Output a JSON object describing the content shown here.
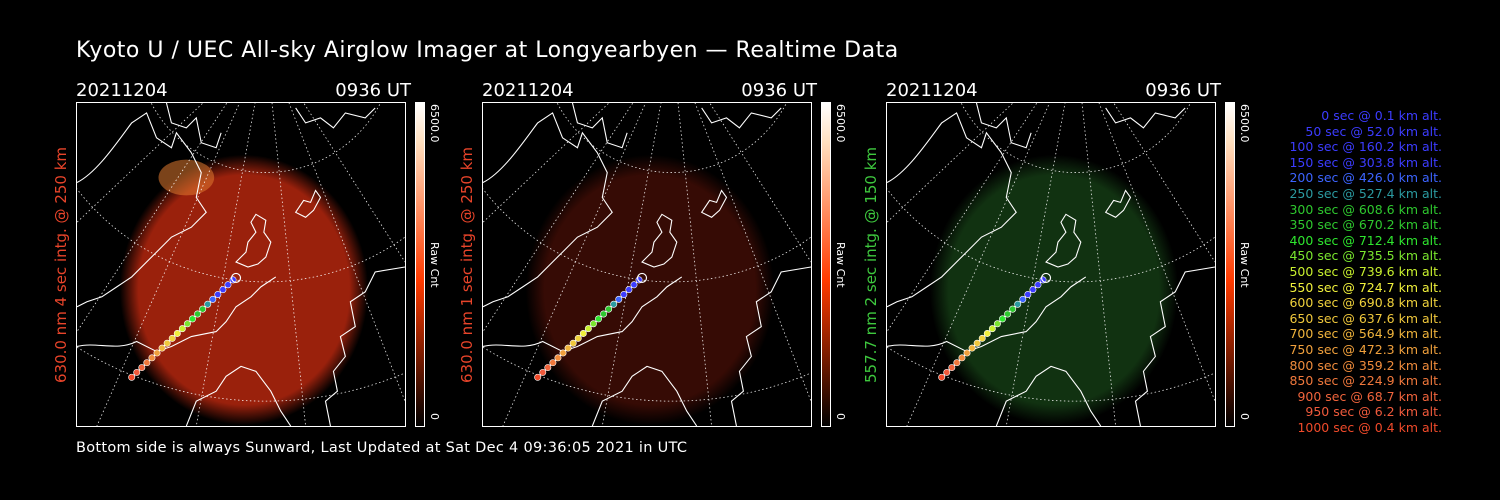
{
  "title": "Kyoto U / UEC All-sky Airglow Imager at Longyearbyen — Realtime Data",
  "footer": "Bottom side is always Sunward, Last Updated at Sat Dec  4 09:36:05 2021 in UTC",
  "panels": [
    {
      "date": "20211204",
      "time": "0936 UT",
      "label": "630.0 nm 4 sec intg. @ 250 km",
      "label_color": "#e8442a",
      "cbar_max": "6500.0",
      "cbar_unit": "Raw Cnt",
      "cbar_min": "0",
      "cbar_color": "#ff3a00",
      "glow_color": "#c52a10",
      "glow_strength": "0.78"
    },
    {
      "date": "20211204",
      "time": "0936 UT",
      "label": "630.0 nm 1 sec intg. @ 250 km",
      "label_color": "#e8442a",
      "cbar_max": "6500.0",
      "cbar_unit": "Raw Cnt",
      "cbar_min": "0",
      "cbar_color": "#ff3a00",
      "glow_color": "#5a1208",
      "glow_strength": "0.6"
    },
    {
      "date": "20211204",
      "time": "0936 UT",
      "label": "557.7 nm 2 sec intg. @ 150 km",
      "label_color": "#3ec83e",
      "cbar_max": "6500.0",
      "cbar_unit": "Raw Cnt",
      "cbar_min": "0",
      "cbar_color": "#ff3a00",
      "glow_color": "#1f5a1f",
      "glow_strength": "0.55"
    }
  ],
  "legend": [
    {
      "text": "0 sec @    0.1 km alt.",
      "color": "#3c3cff"
    },
    {
      "text": "50 sec @   52.0 km alt.",
      "color": "#3c3cff"
    },
    {
      "text": "100 sec @  160.2 km alt.",
      "color": "#3c3cff"
    },
    {
      "text": "150 sec @  303.8 km alt.",
      "color": "#3c3cff"
    },
    {
      "text": "200 sec @  426.0 km alt.",
      "color": "#3c64ff"
    },
    {
      "text": "250 sec @  527.4 km alt.",
      "color": "#2b9aa0"
    },
    {
      "text": "300 sec @  608.6 km alt.",
      "color": "#2ec82e"
    },
    {
      "text": "350 sec @  670.2 km alt.",
      "color": "#2ec82e"
    },
    {
      "text": "400 sec @  712.4 km alt.",
      "color": "#2ee62e"
    },
    {
      "text": "450 sec @  735.5 km alt.",
      "color": "#7ae62e"
    },
    {
      "text": "500 sec @  739.6 km alt.",
      "color": "#c8f02e"
    },
    {
      "text": "550 sec @  724.7 km alt.",
      "color": "#f0f03c"
    },
    {
      "text": "600 sec @  690.8 km alt.",
      "color": "#f0d23c"
    },
    {
      "text": "650 sec @  637.6 km alt.",
      "color": "#f0c83c"
    },
    {
      "text": "700 sec @  564.9 km alt.",
      "color": "#f0b43c"
    },
    {
      "text": "750 sec @  472.3 km alt.",
      "color": "#f0a03c"
    },
    {
      "text": "800 sec @  359.2 km alt.",
      "color": "#f08c3c"
    },
    {
      "text": "850 sec @  224.9 km alt.",
      "color": "#f0783c"
    },
    {
      "text": "900 sec @   68.7 km alt.",
      "color": "#f0643c"
    },
    {
      "text": "950 sec @    6.2 km alt.",
      "color": "#f05a3c"
    },
    {
      "text": "1000 sec @    0.4 km alt.",
      "color": "#f04a2a"
    }
  ]
}
